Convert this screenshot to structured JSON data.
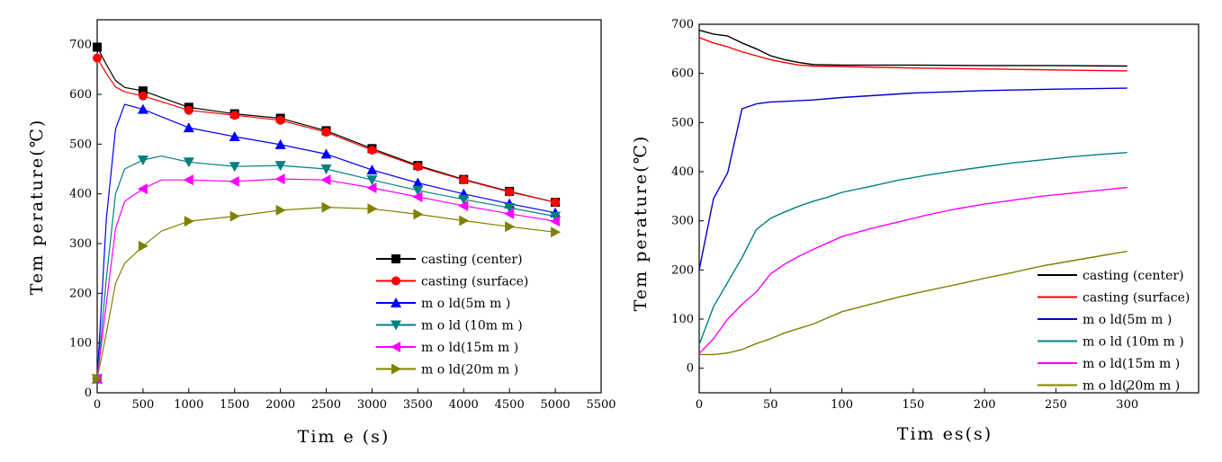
{
  "chart_data": [
    {
      "type": "line",
      "title": "",
      "xlabel": "Tim e (s)",
      "ylabel": "Tem perature(℃)",
      "xlim": [
        0,
        5500
      ],
      "ylim": [
        0,
        750
      ],
      "xticks": [
        0,
        500,
        1000,
        1500,
        2000,
        2500,
        3000,
        3500,
        4000,
        4500,
        5000,
        5500
      ],
      "yticks": [
        0,
        100,
        200,
        300,
        400,
        500,
        600,
        700
      ],
      "legend_position": "lower-right",
      "series": [
        {
          "name": "casting (center)",
          "color": "#000000",
          "marker": "square",
          "x": [
            0,
            100,
            200,
            300,
            500,
            1000,
            1500,
            2000,
            2500,
            3000,
            3500,
            4000,
            4500,
            5000
          ],
          "y": [
            695,
            660,
            628,
            614,
            607,
            574,
            561,
            552,
            527,
            491,
            457,
            429,
            405,
            383
          ]
        },
        {
          "name": "casting (surface)",
          "color": "#ff0000",
          "marker": "circle",
          "x": [
            0,
            100,
            200,
            300,
            500,
            1000,
            1500,
            2000,
            2500,
            3000,
            3500,
            4000,
            4500,
            5000
          ],
          "y": [
            673,
            642,
            615,
            605,
            597,
            568,
            558,
            548,
            524,
            488,
            455,
            428,
            404,
            383
          ]
        },
        {
          "name": "m o ld(5m m )",
          "color": "#0000ff",
          "marker": "triangle-up",
          "x": [
            0,
            100,
            200,
            300,
            500,
            1000,
            1500,
            2000,
            2500,
            3000,
            3500,
            4000,
            4500,
            5000
          ],
          "y": [
            28,
            350,
            530,
            580,
            570,
            533,
            515,
            499,
            480,
            448,
            422,
            400,
            380,
            362
          ]
        },
        {
          "name": "m o ld (10m m )",
          "color": "#008080",
          "marker": "triangle-down",
          "x": [
            0,
            100,
            200,
            300,
            500,
            700,
            1000,
            1500,
            2000,
            2500,
            3000,
            3500,
            4000,
            4500,
            5000
          ],
          "y": [
            28,
            230,
            400,
            450,
            468,
            476,
            464,
            455,
            457,
            450,
            428,
            407,
            389,
            372,
            355
          ]
        },
        {
          "name": "m o ld(15m m )",
          "color": "#ff00ff",
          "marker": "triangle-left",
          "x": [
            0,
            100,
            200,
            300,
            500,
            700,
            1000,
            1500,
            2000,
            2500,
            3000,
            3500,
            4000,
            4500,
            5000
          ],
          "y": [
            28,
            180,
            330,
            385,
            410,
            428,
            428,
            425,
            430,
            428,
            412,
            394,
            376,
            360,
            345
          ]
        },
        {
          "name": "m o ld(20m m )",
          "color": "#808000",
          "marker": "triangle-right",
          "x": [
            0,
            100,
            200,
            300,
            500,
            700,
            1000,
            1500,
            2000,
            2500,
            3000,
            3500,
            4000,
            4500,
            5000
          ],
          "y": [
            28,
            120,
            220,
            260,
            295,
            325,
            345,
            355,
            367,
            373,
            370,
            359,
            346,
            334,
            323
          ]
        }
      ]
    },
    {
      "type": "line",
      "title": "",
      "xlabel": "Tim es(s)",
      "ylabel": "Tem perature(℃)",
      "xlim": [
        0,
        350
      ],
      "ylim": [
        -50,
        700
      ],
      "xticks": [
        0,
        50,
        100,
        150,
        200,
        250,
        300
      ],
      "yticks": [
        0,
        100,
        200,
        300,
        400,
        500,
        600,
        700
      ],
      "legend_position": "lower-right",
      "series": [
        {
          "name": "casting (center)",
          "color": "#000000",
          "x": [
            0,
            10,
            20,
            30,
            40,
            50,
            60,
            70,
            80,
            100,
            150,
            200,
            250,
            300
          ],
          "y": [
            688,
            680,
            676,
            662,
            650,
            636,
            628,
            622,
            618,
            617,
            617,
            616,
            616,
            615
          ]
        },
        {
          "name": "casting (surface)",
          "color": "#ff0000",
          "x": [
            0,
            10,
            20,
            30,
            40,
            50,
            60,
            70,
            80,
            100,
            150,
            200,
            250,
            300
          ],
          "y": [
            673,
            662,
            654,
            644,
            636,
            628,
            622,
            617,
            615,
            614,
            611,
            609,
            607,
            605
          ]
        },
        {
          "name": "m o ld(5m m )",
          "color": "#0000cc",
          "x": [
            0,
            10,
            20,
            30,
            40,
            50,
            60,
            80,
            100,
            150,
            200,
            250,
            300
          ],
          "y": [
            200,
            345,
            398,
            528,
            538,
            542,
            543,
            546,
            551,
            560,
            565,
            568,
            570
          ]
        },
        {
          "name": "m o ld (10m m )",
          "color": "#008080",
          "x": [
            0,
            10,
            20,
            30,
            40,
            50,
            60,
            70,
            80,
            90,
            100,
            120,
            140,
            160,
            180,
            200,
            220,
            240,
            260,
            280,
            300
          ],
          "y": [
            48,
            125,
            175,
            225,
            282,
            305,
            318,
            330,
            340,
            348,
            358,
            370,
            383,
            393,
            402,
            410,
            418,
            424,
            430,
            435,
            439
          ]
        },
        {
          "name": "m o ld(15m m )",
          "color": "#ff00ff",
          "x": [
            0,
            10,
            20,
            30,
            40,
            50,
            60,
            70,
            80,
            90,
            100,
            120,
            140,
            160,
            180,
            200,
            220,
            240,
            260,
            280,
            300
          ],
          "y": [
            30,
            60,
            100,
            130,
            155,
            192,
            212,
            228,
            242,
            255,
            268,
            284,
            298,
            312,
            324,
            334,
            342,
            350,
            356,
            362,
            368
          ]
        },
        {
          "name": "m o ld(20m m )",
          "color": "#808000",
          "x": [
            0,
            10,
            20,
            30,
            40,
            50,
            60,
            80,
            100,
            120,
            140,
            160,
            180,
            200,
            220,
            240,
            260,
            280,
            300
          ],
          "y": [
            28,
            28,
            31,
            38,
            50,
            60,
            72,
            90,
            115,
            130,
            145,
            158,
            170,
            183,
            195,
            208,
            218,
            228,
            238
          ]
        }
      ]
    }
  ]
}
